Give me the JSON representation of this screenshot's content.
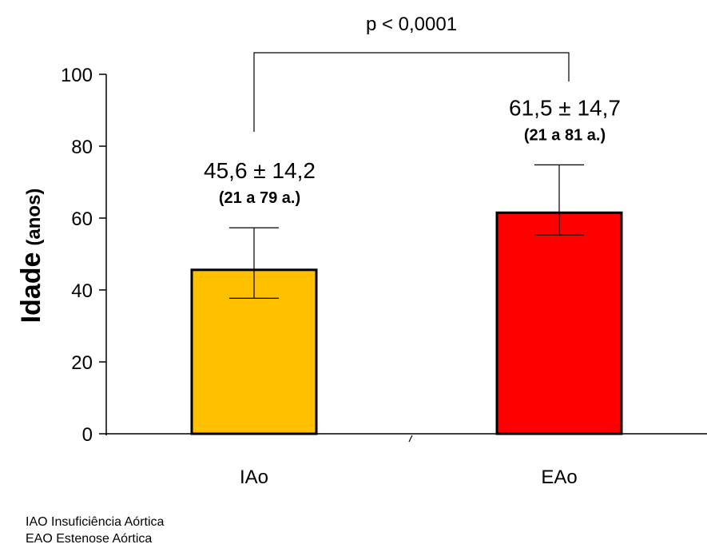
{
  "chart_data": {
    "type": "bar",
    "categories": [
      "IAo",
      "EAo"
    ],
    "values": [
      45.6,
      61.5
    ],
    "error_low": [
      37.7,
      55.3
    ],
    "error_high": [
      57.3,
      74.8
    ],
    "bar_colors": [
      "#FFC000",
      "#FF0000"
    ],
    "mean_labels": [
      "45,6 ± 14,2",
      "61,5 ± 14,7"
    ],
    "range_labels": [
      "(21  a  79 a.)",
      "(21  a  81 a.)"
    ],
    "ylabel_main": "Idade",
    "ylabel_sub": "(anos)",
    "ylim": [
      0,
      100
    ],
    "yticks": [
      0,
      20,
      40,
      60,
      80,
      100
    ],
    "significance": {
      "label": "p < 0,0001",
      "left_y": 84,
      "right_y": 98,
      "top_y": 106
    }
  },
  "footnotes": [
    "IAO Insuficiência Aórtica",
    "EAO Estenose Aórtica"
  ]
}
